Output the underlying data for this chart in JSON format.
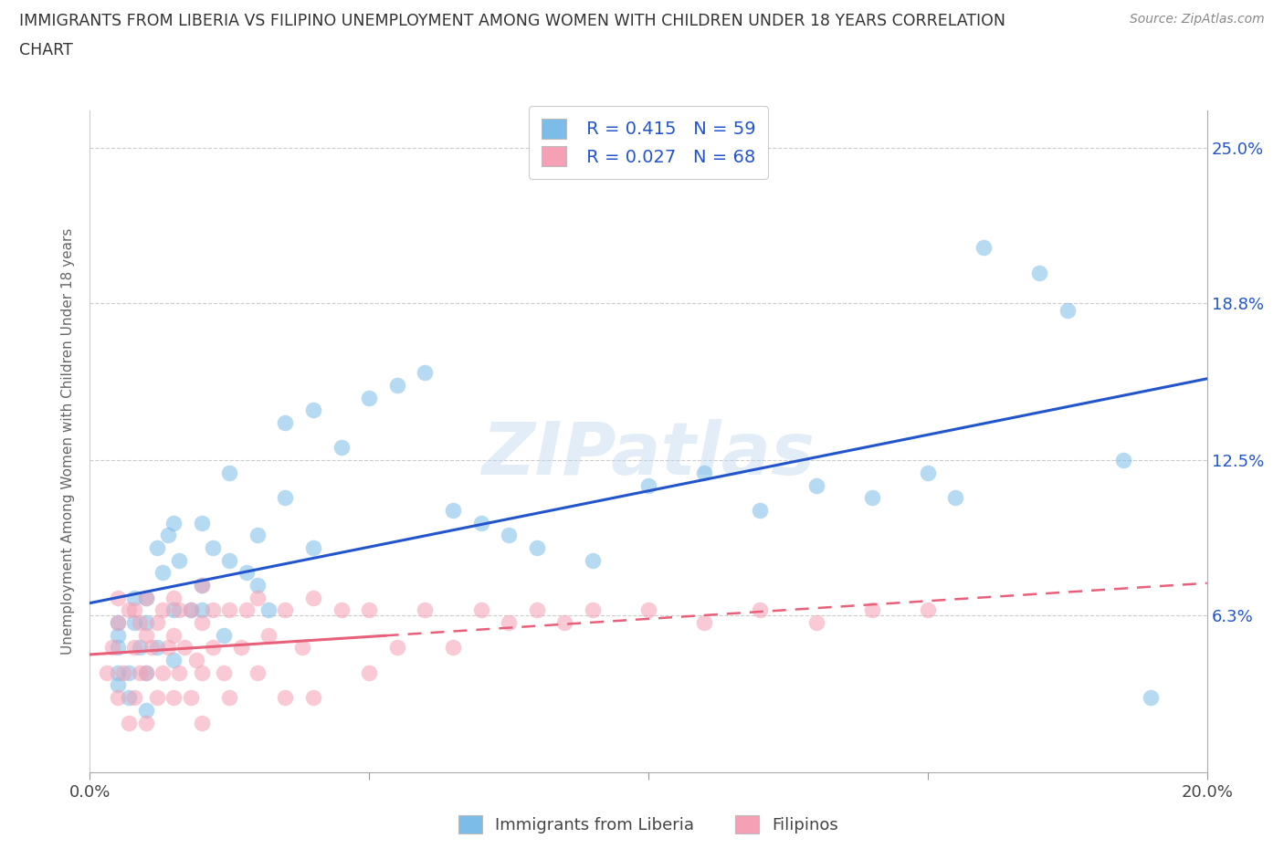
{
  "title_line1": "IMMIGRANTS FROM LIBERIA VS FILIPINO UNEMPLOYMENT AMONG WOMEN WITH CHILDREN UNDER 18 YEARS CORRELATION",
  "title_line2": "CHART",
  "source": "Source: ZipAtlas.com",
  "ylabel": "Unemployment Among Women with Children Under 18 years",
  "xlim": [
    0.0,
    0.2
  ],
  "ylim": [
    0.0,
    0.265
  ],
  "xtick_vals": [
    0.0,
    0.05,
    0.1,
    0.15,
    0.2
  ],
  "xtick_labels": [
    "0.0%",
    "",
    "",
    "",
    "20.0%"
  ],
  "ytick_vals": [
    0.0,
    0.063,
    0.125,
    0.188,
    0.25
  ],
  "ytick_labels": [
    "",
    "6.3%",
    "12.5%",
    "18.8%",
    "25.0%"
  ],
  "liberia_color": "#7bbde8",
  "filipino_color": "#f5a0b5",
  "liberia_line_color": "#2255cc",
  "filipino_line_color": "#e8607a",
  "legend_color": "#2255cc",
  "watermark": "ZIPatlas",
  "background_color": "#ffffff",
  "legend_R_liberia": "R = 0.415",
  "legend_N_liberia": "N = 59",
  "legend_R_filipino": "R = 0.027",
  "legend_N_filipino": "N = 68",
  "liberia_x": [
    0.005,
    0.005,
    0.005,
    0.005,
    0.005,
    0.007,
    0.007,
    0.008,
    0.008,
    0.009,
    0.01,
    0.01,
    0.01,
    0.01,
    0.012,
    0.012,
    0.013,
    0.014,
    0.015,
    0.015,
    0.015,
    0.016,
    0.018,
    0.02,
    0.02,
    0.02,
    0.022,
    0.024,
    0.025,
    0.025,
    0.028,
    0.03,
    0.03,
    0.032,
    0.035,
    0.035,
    0.04,
    0.04,
    0.045,
    0.05,
    0.055,
    0.06,
    0.065,
    0.07,
    0.075,
    0.08,
    0.09,
    0.1,
    0.11,
    0.12,
    0.13,
    0.14,
    0.15,
    0.155,
    0.16,
    0.17,
    0.175,
    0.185,
    0.19
  ],
  "liberia_y": [
    0.035,
    0.04,
    0.05,
    0.055,
    0.06,
    0.03,
    0.04,
    0.06,
    0.07,
    0.05,
    0.025,
    0.04,
    0.06,
    0.07,
    0.05,
    0.09,
    0.08,
    0.095,
    0.045,
    0.065,
    0.1,
    0.085,
    0.065,
    0.065,
    0.075,
    0.1,
    0.09,
    0.055,
    0.085,
    0.12,
    0.08,
    0.075,
    0.095,
    0.065,
    0.11,
    0.14,
    0.09,
    0.145,
    0.13,
    0.15,
    0.155,
    0.16,
    0.105,
    0.1,
    0.095,
    0.09,
    0.085,
    0.115,
    0.12,
    0.105,
    0.115,
    0.11,
    0.12,
    0.11,
    0.21,
    0.2,
    0.185,
    0.125,
    0.03
  ],
  "filipino_x": [
    0.003,
    0.004,
    0.005,
    0.005,
    0.005,
    0.006,
    0.007,
    0.007,
    0.008,
    0.008,
    0.008,
    0.009,
    0.009,
    0.01,
    0.01,
    0.01,
    0.01,
    0.011,
    0.012,
    0.012,
    0.013,
    0.013,
    0.014,
    0.015,
    0.015,
    0.015,
    0.016,
    0.016,
    0.017,
    0.018,
    0.018,
    0.019,
    0.02,
    0.02,
    0.02,
    0.02,
    0.022,
    0.022,
    0.024,
    0.025,
    0.025,
    0.027,
    0.028,
    0.03,
    0.03,
    0.032,
    0.035,
    0.035,
    0.038,
    0.04,
    0.04,
    0.045,
    0.05,
    0.05,
    0.055,
    0.06,
    0.065,
    0.07,
    0.075,
    0.08,
    0.085,
    0.09,
    0.1,
    0.11,
    0.12,
    0.13,
    0.14,
    0.15
  ],
  "filipino_y": [
    0.04,
    0.05,
    0.03,
    0.06,
    0.07,
    0.04,
    0.02,
    0.065,
    0.03,
    0.05,
    0.065,
    0.04,
    0.06,
    0.02,
    0.04,
    0.055,
    0.07,
    0.05,
    0.03,
    0.06,
    0.04,
    0.065,
    0.05,
    0.03,
    0.055,
    0.07,
    0.04,
    0.065,
    0.05,
    0.03,
    0.065,
    0.045,
    0.02,
    0.04,
    0.06,
    0.075,
    0.05,
    0.065,
    0.04,
    0.03,
    0.065,
    0.05,
    0.065,
    0.04,
    0.07,
    0.055,
    0.03,
    0.065,
    0.05,
    0.03,
    0.07,
    0.065,
    0.04,
    0.065,
    0.05,
    0.065,
    0.05,
    0.065,
    0.06,
    0.065,
    0.06,
    0.065,
    0.065,
    0.06,
    0.065,
    0.06,
    0.065,
    0.065
  ]
}
